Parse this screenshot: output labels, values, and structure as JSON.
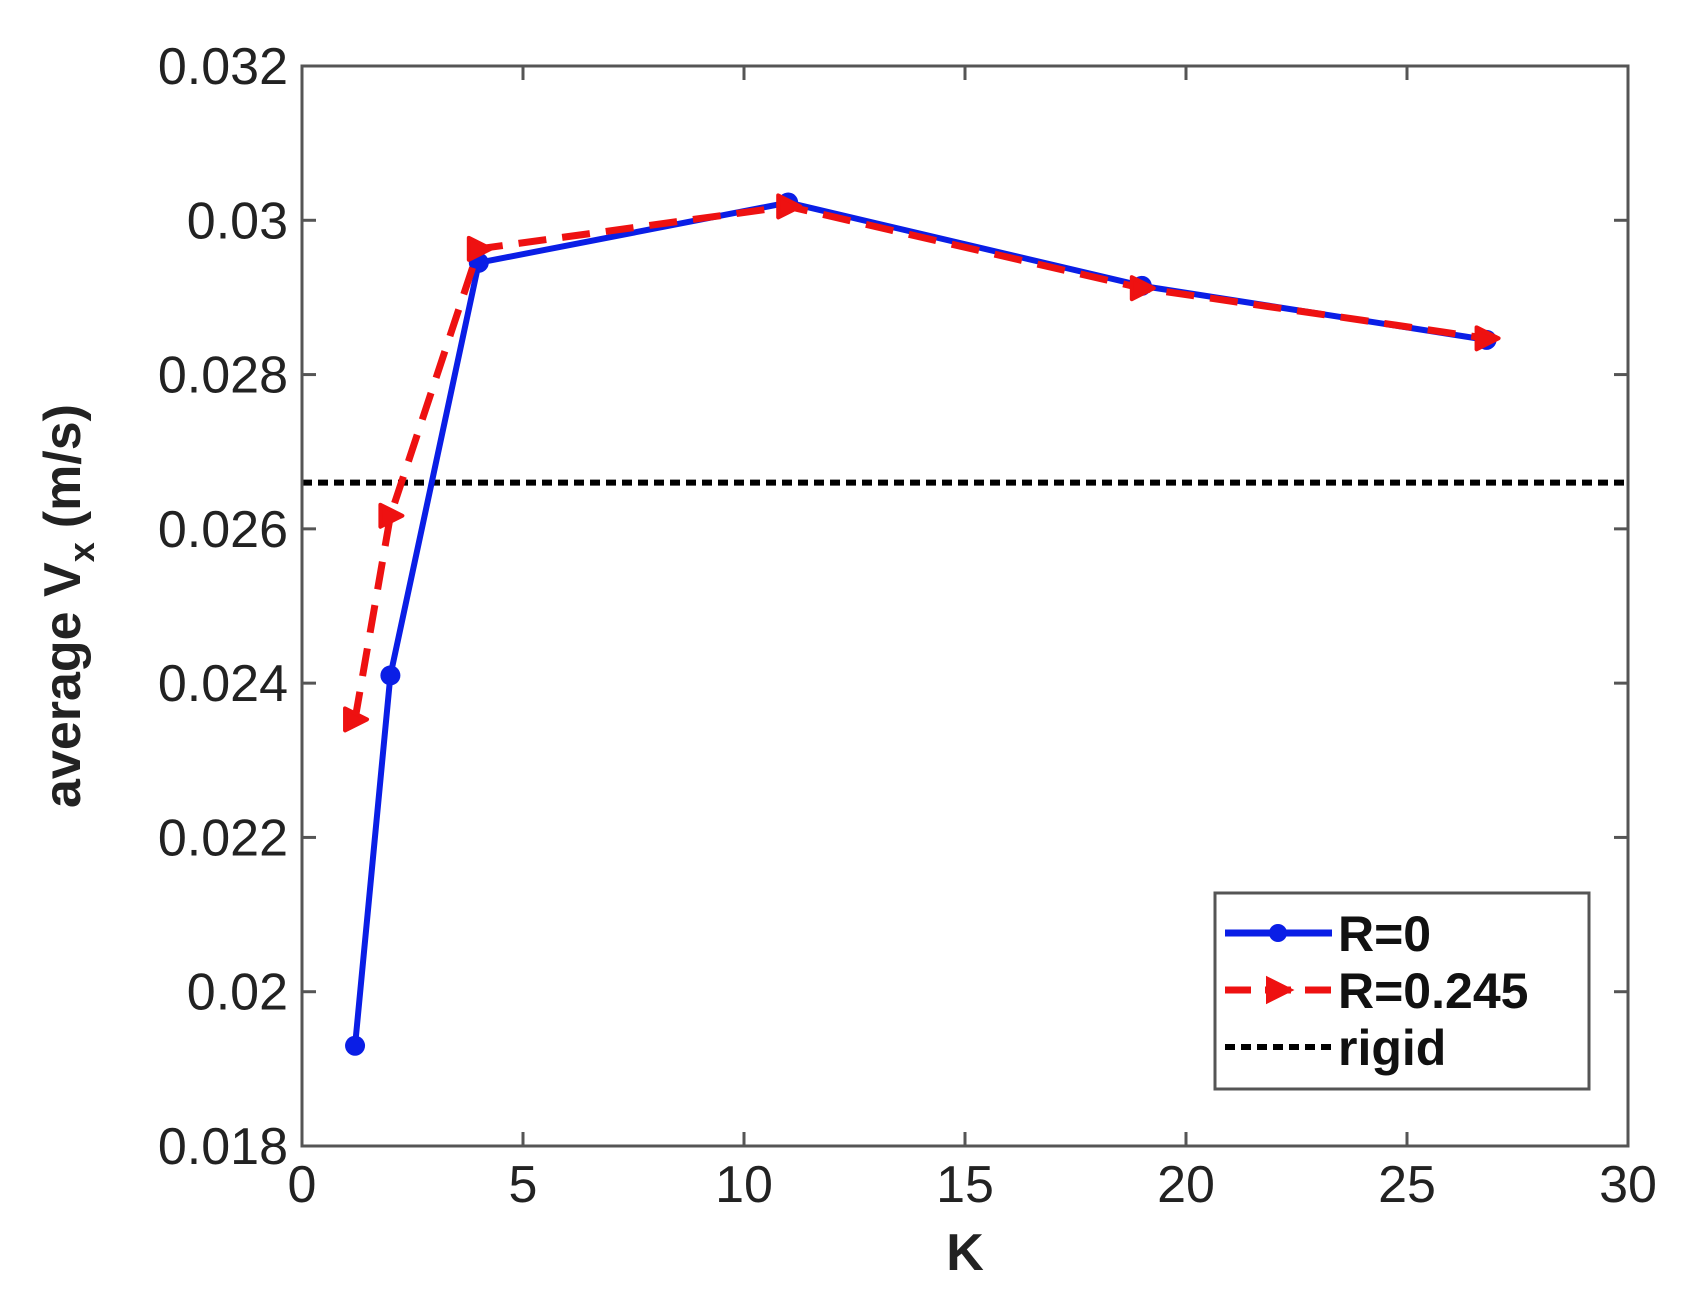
{
  "chart_data": {
    "type": "line",
    "xlabel": "K",
    "ylabel": {
      "main": "average V",
      "subscript": "x",
      "unit": "(m/s)"
    },
    "xlim": [
      0,
      30
    ],
    "ylim": [
      0.018,
      0.032
    ],
    "xticks": [
      "0",
      "5",
      "10",
      "15",
      "20",
      "25",
      "30"
    ],
    "yticks": [
      "0.018",
      "0.02",
      "0.022",
      "0.024",
      "0.026",
      "0.028",
      "0.03",
      "0.032"
    ],
    "grid": false,
    "legend_position": "bottom-right",
    "series": [
      {
        "name": "R=0",
        "color": "#0a1ee6",
        "style": "solid",
        "marker": "dot",
        "x": [
          1.2,
          2.0,
          4.0,
          11.0,
          19.0,
          26.8
        ],
        "y": [
          0.0193,
          0.0241,
          0.02945,
          0.03023,
          0.02915,
          0.02845
        ]
      },
      {
        "name": "R=0.245",
        "color": "#ee1111",
        "style": "dashed",
        "marker": "triangle-right",
        "x": [
          1.2,
          2.0,
          4.0,
          11.0,
          19.0,
          26.8
        ],
        "y": [
          0.02353,
          0.02617,
          0.02963,
          0.03018,
          0.02912,
          0.02847
        ]
      },
      {
        "name": "rigid",
        "color": "#000000",
        "style": "dotted",
        "marker": "none",
        "value": 0.0266
      }
    ]
  }
}
